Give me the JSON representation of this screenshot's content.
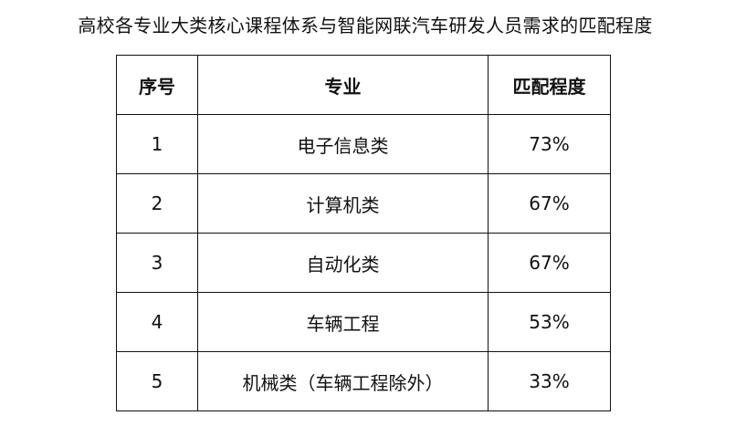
{
  "title": "高校各专业大类核心课程体系与智能网联汽车研发人员需求的匹配程度",
  "table": {
    "headers": [
      "序号",
      "专业",
      "匹配程度"
    ],
    "rows": [
      [
        "1",
        "电子信息类",
        "73%"
      ],
      [
        "2",
        "计算机类",
        "67%"
      ],
      [
        "3",
        "自动化类",
        "67%"
      ],
      [
        "4",
        "车辆工程",
        "53%"
      ],
      [
        "5",
        "机械类（车辆工程除外）",
        "33%"
      ]
    ]
  }
}
